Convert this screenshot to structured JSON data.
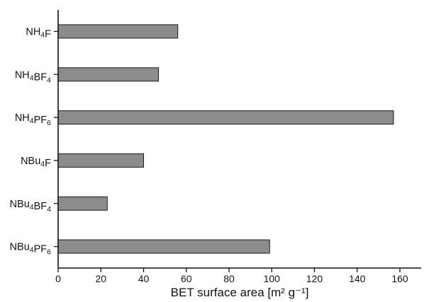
{
  "chart_data": {
    "type": "bar",
    "orientation": "horizontal",
    "categories": [
      {
        "base": "NH",
        "sub1": "4",
        "mid": "F",
        "sub2": ""
      },
      {
        "base": "NH",
        "sub1": "4",
        "mid": "BF",
        "sub2": "4"
      },
      {
        "base": "NH",
        "sub1": "4",
        "mid": "PF",
        "sub2": "6"
      },
      {
        "base": "NBu",
        "sub1": "4",
        "mid": "F",
        "sub2": ""
      },
      {
        "base": "NBu",
        "sub1": "4",
        "mid": "BF",
        "sub2": "4"
      },
      {
        "base": "NBu",
        "sub1": "4",
        "mid": "PF",
        "sub2": "6"
      }
    ],
    "values": [
      56,
      47,
      157,
      40,
      23,
      99
    ],
    "title": "",
    "xlabel": "BET surface area [m² g⁻¹]",
    "ylabel": "",
    "xlim": [
      0,
      170
    ],
    "xticks": [
      0,
      20,
      40,
      60,
      80,
      100,
      120,
      140,
      160
    ],
    "grid": false,
    "legend": "none",
    "bar_color": "#8c8c8c",
    "bar_edge_color": "#1a1a1a",
    "axis_color": "#111111"
  }
}
